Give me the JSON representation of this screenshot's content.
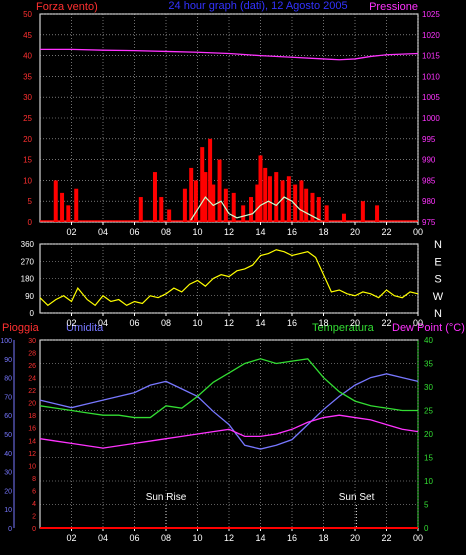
{
  "header": {
    "left_label": "Forza vento)",
    "center_label": "24 hour graph (dati), 12 Agosto 2005",
    "right_label": "Pressione"
  },
  "legend_bottom": {
    "pioggia": "Pioggia",
    "umidita": "Umidita",
    "temperatura": "Temperatura",
    "dew_point": "Dew Point (°C)"
  },
  "annotations": {
    "sun_rise": "Sun Rise",
    "sun_set": "Sun Set"
  },
  "colors": {
    "wind": "#ff2020",
    "gust": "#ff0000",
    "wind_avg": "#ccffcc",
    "pressure": "#ff33ff",
    "direction": "#ffff00",
    "humidity": "#7777ff",
    "temperature": "#33dd33",
    "dewpoint": "#ff33ff",
    "rain": "#ff0000",
    "grid": "#bbbbbb"
  },
  "chart_data": [
    {
      "type": "bar",
      "name": "wind-pressure",
      "x_ticks": [
        "02",
        "04",
        "06",
        "08",
        "10",
        "12",
        "14",
        "16",
        "18",
        "20",
        "22",
        "00"
      ],
      "left_axis": {
        "label": "Forza vento)",
        "ylim": [
          0,
          50
        ],
        "ticks": [
          0,
          5,
          10,
          15,
          20,
          25,
          30,
          35,
          40,
          45,
          50
        ]
      },
      "right_axis": {
        "label": "Pressione",
        "ylim": [
          975,
          1025
        ],
        "ticks": [
          975,
          980,
          985,
          990,
          995,
          1000,
          1005,
          1010,
          1015,
          1020,
          1025
        ]
      },
      "xlim": [
        0,
        24
      ],
      "wind_gust_bars": [
        [
          1.0,
          10
        ],
        [
          1.4,
          7
        ],
        [
          1.8,
          4
        ],
        [
          2.3,
          8
        ],
        [
          6.4,
          6
        ],
        [
          7.3,
          12
        ],
        [
          7.7,
          6
        ],
        [
          8.2,
          3
        ],
        [
          9.2,
          8
        ],
        [
          9.6,
          13
        ],
        [
          9.9,
          10
        ],
        [
          10.3,
          18
        ],
        [
          10.5,
          12
        ],
        [
          10.8,
          20
        ],
        [
          11.0,
          9
        ],
        [
          11.4,
          15
        ],
        [
          11.8,
          8
        ],
        [
          12.3,
          7
        ],
        [
          12.9,
          4
        ],
        [
          13.4,
          6
        ],
        [
          13.8,
          9
        ],
        [
          14.0,
          16
        ],
        [
          14.3,
          13
        ],
        [
          14.6,
          11
        ],
        [
          15.0,
          12
        ],
        [
          15.4,
          10
        ],
        [
          15.8,
          11
        ],
        [
          16.2,
          9
        ],
        [
          16.6,
          10
        ],
        [
          16.9,
          8
        ],
        [
          17.3,
          7
        ],
        [
          17.7,
          6
        ],
        [
          18.2,
          4
        ],
        [
          19.3,
          2
        ],
        [
          20.5,
          5
        ],
        [
          21.4,
          4
        ]
      ],
      "wind_avg": [
        [
          9.5,
          0
        ],
        [
          10.0,
          3
        ],
        [
          10.5,
          6
        ],
        [
          11.0,
          4
        ],
        [
          11.5,
          5
        ],
        [
          12.0,
          2
        ],
        [
          12.5,
          1
        ],
        [
          13.5,
          2
        ],
        [
          14.0,
          4
        ],
        [
          14.5,
          5
        ],
        [
          15.0,
          4
        ],
        [
          15.5,
          6
        ],
        [
          16.0,
          5
        ],
        [
          16.5,
          3
        ],
        [
          17.0,
          2
        ],
        [
          17.5,
          1
        ],
        [
          18.0,
          0
        ]
      ],
      "pressure": [
        [
          0,
          1016.5
        ],
        [
          2,
          1016.5
        ],
        [
          4,
          1016.3
        ],
        [
          6,
          1016.2
        ],
        [
          8,
          1016.0
        ],
        [
          10,
          1015.8
        ],
        [
          12,
          1015.5
        ],
        [
          14,
          1015.0
        ],
        [
          16,
          1014.6
        ],
        [
          18,
          1014.2
        ],
        [
          19,
          1014.0
        ],
        [
          20,
          1014.2
        ],
        [
          21,
          1014.8
        ],
        [
          22,
          1015.2
        ],
        [
          24,
          1015.5
        ]
      ]
    },
    {
      "type": "scatter",
      "name": "wind-direction",
      "x_ticks": [
        "02",
        "04",
        "06",
        "08",
        "10",
        "12",
        "14",
        "16",
        "18",
        "20",
        "22",
        "00"
      ],
      "left_axis": {
        "ylim": [
          0,
          360
        ],
        "ticks": [
          0,
          90,
          180,
          270,
          360
        ]
      },
      "right_axis_labels": [
        "N",
        "W",
        "S",
        "E",
        "N"
      ],
      "xlim": [
        0,
        24
      ],
      "direction": [
        [
          0,
          80
        ],
        [
          0.5,
          40
        ],
        [
          1,
          70
        ],
        [
          1.5,
          90
        ],
        [
          2,
          60
        ],
        [
          2.4,
          130
        ],
        [
          3,
          70
        ],
        [
          3.5,
          40
        ],
        [
          4,
          90
        ],
        [
          4.5,
          60
        ],
        [
          5,
          70
        ],
        [
          5.5,
          40
        ],
        [
          6,
          60
        ],
        [
          6.5,
          50
        ],
        [
          7,
          90
        ],
        [
          7.5,
          80
        ],
        [
          8,
          100
        ],
        [
          8.5,
          130
        ],
        [
          9,
          110
        ],
        [
          9.5,
          150
        ],
        [
          10,
          170
        ],
        [
          10.5,
          140
        ],
        [
          11,
          180
        ],
        [
          11.5,
          200
        ],
        [
          12,
          190
        ],
        [
          12.5,
          220
        ],
        [
          13,
          230
        ],
        [
          13.5,
          250
        ],
        [
          14,
          300
        ],
        [
          14.5,
          310
        ],
        [
          15,
          330
        ],
        [
          15.5,
          320
        ],
        [
          16,
          300
        ],
        [
          16.5,
          310
        ],
        [
          17,
          320
        ],
        [
          17.5,
          290
        ],
        [
          18,
          200
        ],
        [
          18.5,
          110
        ],
        [
          19,
          120
        ],
        [
          19.5,
          100
        ],
        [
          20,
          90
        ],
        [
          20.5,
          110
        ],
        [
          21,
          100
        ],
        [
          21.5,
          80
        ],
        [
          22,
          120
        ],
        [
          22.5,
          90
        ],
        [
          23,
          80
        ],
        [
          23.5,
          110
        ],
        [
          24,
          100
        ]
      ]
    },
    {
      "type": "line",
      "name": "temp-humidity-dewpoint",
      "x_ticks": [
        "02",
        "04",
        "06",
        "08",
        "10",
        "12",
        "14",
        "16",
        "18",
        "20",
        "22",
        "00"
      ],
      "humidity_axis": {
        "label": "Umidita",
        "ylim": [
          0,
          100
        ],
        "ticks": [
          0,
          10,
          20,
          30,
          40,
          50,
          60,
          70,
          80,
          90,
          100
        ]
      },
      "rain_axis": {
        "label": "Pioggia",
        "ylim": [
          0,
          30
        ],
        "ticks": [
          0,
          2,
          4,
          6,
          8,
          10,
          12,
          14,
          16,
          18,
          20,
          22,
          24,
          26,
          28,
          30
        ]
      },
      "temp_axis": {
        "label": "Temperatura",
        "ylim": [
          0,
          40
        ],
        "ticks": [
          0,
          5,
          10,
          15,
          20,
          25,
          30,
          35,
          40
        ]
      },
      "xlim": [
        0,
        24
      ],
      "series": [
        {
          "name": "Umidita",
          "axis": "humidity",
          "values": [
            [
              0,
              68
            ],
            [
              1,
              66
            ],
            [
              2,
              64
            ],
            [
              3,
              66
            ],
            [
              4,
              68
            ],
            [
              5,
              70
            ],
            [
              6,
              72
            ],
            [
              7,
              76
            ],
            [
              8,
              78
            ],
            [
              9,
              74
            ],
            [
              10,
              70
            ],
            [
              11,
              62
            ],
            [
              12,
              55
            ],
            [
              13,
              44
            ],
            [
              14,
              42
            ],
            [
              15,
              44
            ],
            [
              16,
              47
            ],
            [
              17,
              55
            ],
            [
              18,
              63
            ],
            [
              19,
              70
            ],
            [
              20,
              76
            ],
            [
              21,
              80
            ],
            [
              22,
              82
            ],
            [
              23,
              80
            ],
            [
              24,
              78
            ]
          ]
        },
        {
          "name": "Temperatura",
          "axis": "temp",
          "values": [
            [
              0,
              26
            ],
            [
              1,
              25.5
            ],
            [
              2,
              25
            ],
            [
              3,
              24.5
            ],
            [
              4,
              24
            ],
            [
              5,
              24
            ],
            [
              6,
              23.5
            ],
            [
              7,
              23.5
            ],
            [
              8,
              26
            ],
            [
              9,
              25.5
            ],
            [
              10,
              28
            ],
            [
              11,
              31
            ],
            [
              12,
              33
            ],
            [
              13,
              35
            ],
            [
              14,
              36
            ],
            [
              15,
              35
            ],
            [
              16,
              35.5
            ],
            [
              17,
              36
            ],
            [
              18,
              32
            ],
            [
              19,
              29
            ],
            [
              20,
              27
            ],
            [
              21,
              26
            ],
            [
              22,
              25.5
            ],
            [
              23,
              25
            ],
            [
              24,
              25
            ]
          ]
        },
        {
          "name": "Dew Point (°C)",
          "axis": "temp",
          "values": [
            [
              0,
              19
            ],
            [
              1,
              18.5
            ],
            [
              2,
              18
            ],
            [
              3,
              17.5
            ],
            [
              4,
              17
            ],
            [
              5,
              17.5
            ],
            [
              6,
              18
            ],
            [
              7,
              18.5
            ],
            [
              8,
              19
            ],
            [
              9,
              19.5
            ],
            [
              10,
              20
            ],
            [
              11,
              20.5
            ],
            [
              12,
              21
            ],
            [
              13,
              19.5
            ],
            [
              14,
              19.5
            ],
            [
              15,
              20
            ],
            [
              16,
              21
            ],
            [
              17,
              22.5
            ],
            [
              18,
              23.5
            ],
            [
              19,
              24
            ],
            [
              20,
              23.5
            ],
            [
              21,
              23
            ],
            [
              22,
              22
            ],
            [
              23,
              21
            ],
            [
              24,
              20.5
            ]
          ]
        },
        {
          "name": "Pioggia",
          "axis": "rain",
          "values": [
            [
              0,
              0
            ],
            [
              24,
              0
            ]
          ]
        }
      ],
      "markers": [
        {
          "label": "Sun Rise",
          "x": 8.0
        },
        {
          "label": "Sun Set",
          "x": 20.1
        }
      ]
    }
  ]
}
